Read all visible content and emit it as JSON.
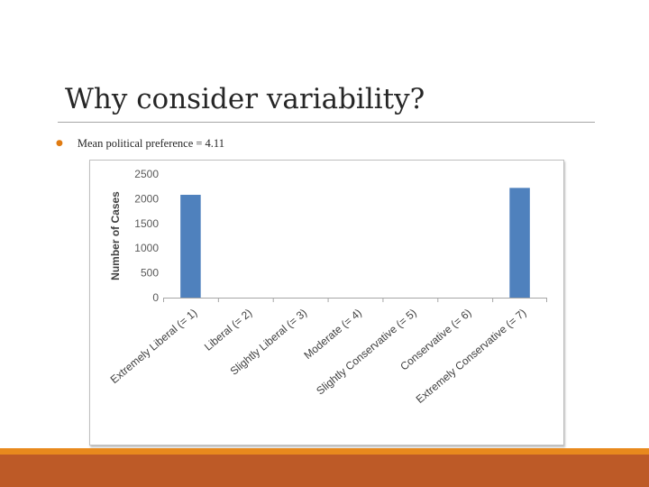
{
  "slide": {
    "title": "Why consider variability?",
    "bullet": "Mean political preference = 4.11"
  },
  "colors": {
    "accent": "#e07b12",
    "bar": "#4f81bd",
    "band_top": "#e8891d",
    "band_bottom": "#bd5a27"
  },
  "chart_data": {
    "type": "bar",
    "categories": [
      "Extremely Liberal (= 1)",
      "Liberal (= 2)",
      "Slightly Liberal (= 3)",
      "Moderate (= 4)",
      "Slightly Conservative (= 5)",
      "Conservative (= 6)",
      "Extremely Conservative (= 7)"
    ],
    "values": [
      2080,
      0,
      0,
      0,
      0,
      0,
      2220
    ],
    "title": "",
    "xlabel": "",
    "ylabel": "Number of Cases",
    "ylim": [
      0,
      2500
    ],
    "yticks": [
      0,
      500,
      1000,
      1500,
      2000,
      2500
    ],
    "grid": false,
    "legend": "none"
  }
}
